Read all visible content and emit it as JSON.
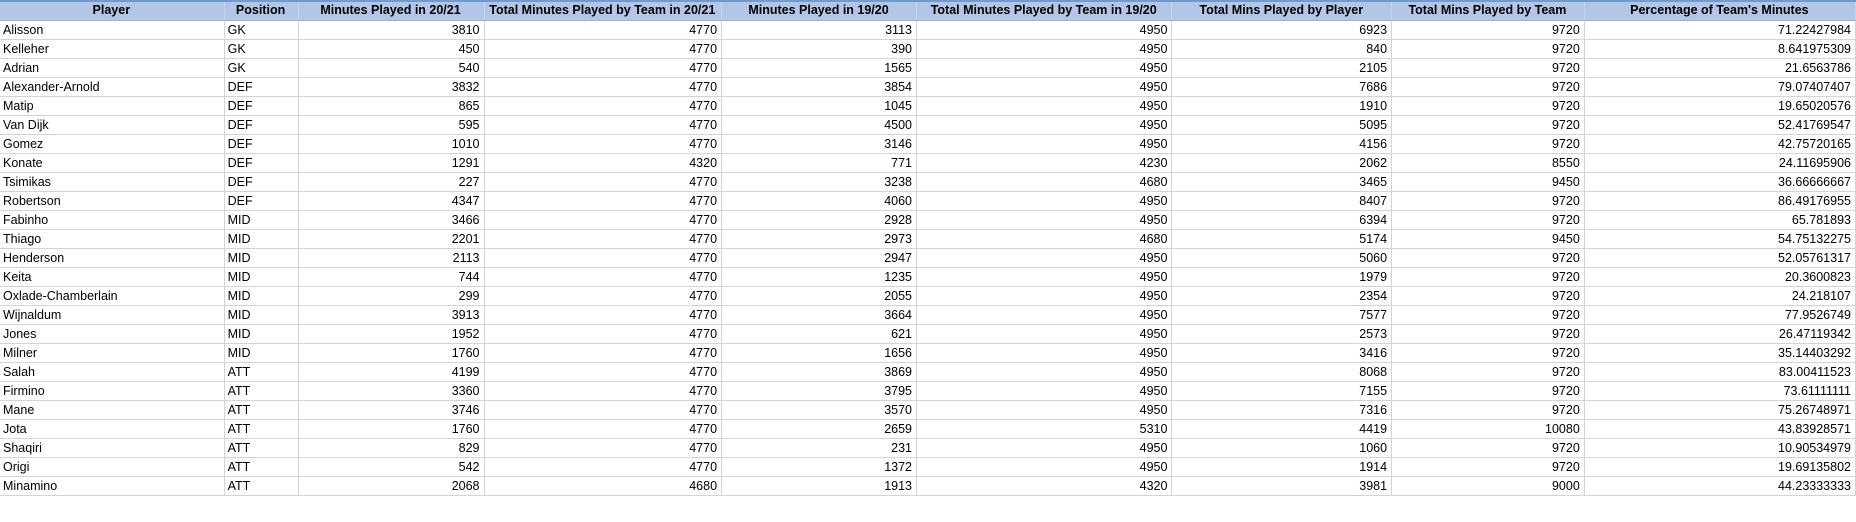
{
  "columns": [
    "Player",
    "Position",
    "Minutes Played in 20/21",
    "Total Minutes Played by Team in 20/21",
    "Minutes Played in 19/20",
    "Total Minutes Played by Team in 19/20",
    "Total Mins Played by Player",
    "Total Mins Played by Team",
    "Percentage of Team's Minutes"
  ],
  "rows": [
    [
      "Alisson",
      "GK",
      "3810",
      "4770",
      "3113",
      "4950",
      "6923",
      "9720",
      "71.22427984"
    ],
    [
      "Kelleher",
      "GK",
      "450",
      "4770",
      "390",
      "4950",
      "840",
      "9720",
      "8.641975309"
    ],
    [
      "Adrian",
      "GK",
      "540",
      "4770",
      "1565",
      "4950",
      "2105",
      "9720",
      "21.6563786"
    ],
    [
      "Alexander-Arnold",
      "DEF",
      "3832",
      "4770",
      "3854",
      "4950",
      "7686",
      "9720",
      "79.07407407"
    ],
    [
      "Matip",
      "DEF",
      "865",
      "4770",
      "1045",
      "4950",
      "1910",
      "9720",
      "19.65020576"
    ],
    [
      "Van Dijk",
      "DEF",
      "595",
      "4770",
      "4500",
      "4950",
      "5095",
      "9720",
      "52.41769547"
    ],
    [
      "Gomez",
      "DEF",
      "1010",
      "4770",
      "3146",
      "4950",
      "4156",
      "9720",
      "42.75720165"
    ],
    [
      "Konate",
      "DEF",
      "1291",
      "4320",
      "771",
      "4230",
      "2062",
      "8550",
      "24.11695906"
    ],
    [
      "Tsimikas",
      "DEF",
      "227",
      "4770",
      "3238",
      "4680",
      "3465",
      "9450",
      "36.66666667"
    ],
    [
      "Robertson",
      "DEF",
      "4347",
      "4770",
      "4060",
      "4950",
      "8407",
      "9720",
      "86.49176955"
    ],
    [
      "Fabinho",
      "MID",
      "3466",
      "4770",
      "2928",
      "4950",
      "6394",
      "9720",
      "65.781893"
    ],
    [
      "Thiago",
      "MID",
      "2201",
      "4770",
      "2973",
      "4680",
      "5174",
      "9450",
      "54.75132275"
    ],
    [
      "Henderson",
      "MID",
      "2113",
      "4770",
      "2947",
      "4950",
      "5060",
      "9720",
      "52.05761317"
    ],
    [
      "Keita",
      "MID",
      "744",
      "4770",
      "1235",
      "4950",
      "1979",
      "9720",
      "20.3600823"
    ],
    [
      "Oxlade-Chamberlain",
      "MID",
      "299",
      "4770",
      "2055",
      "4950",
      "2354",
      "9720",
      "24.218107"
    ],
    [
      "Wijnaldum",
      "MID",
      "3913",
      "4770",
      "3664",
      "4950",
      "7577",
      "9720",
      "77.9526749"
    ],
    [
      "Jones",
      "MID",
      "1952",
      "4770",
      "621",
      "4950",
      "2573",
      "9720",
      "26.47119342"
    ],
    [
      "Milner",
      "MID",
      "1760",
      "4770",
      "1656",
      "4950",
      "3416",
      "9720",
      "35.14403292"
    ],
    [
      "Salah",
      "ATT",
      "4199",
      "4770",
      "3869",
      "4950",
      "8068",
      "9720",
      "83.00411523"
    ],
    [
      "Firmino",
      "ATT",
      "3360",
      "4770",
      "3795",
      "4950",
      "7155",
      "9720",
      "73.61111111"
    ],
    [
      "Mane",
      "ATT",
      "3746",
      "4770",
      "3570",
      "4950",
      "7316",
      "9720",
      "75.26748971"
    ],
    [
      "Jota",
      "ATT",
      "1760",
      "4770",
      "2659",
      "5310",
      "4419",
      "10080",
      "43.83928571"
    ],
    [
      "Shaqiri",
      "ATT",
      "829",
      "4770",
      "231",
      "4950",
      "1060",
      "9720",
      "10.90534979"
    ],
    [
      "Origi",
      "ATT",
      "542",
      "4770",
      "1372",
      "4950",
      "1914",
      "9720",
      "19.69135802"
    ],
    [
      "Minamino",
      "ATT",
      "2068",
      "4680",
      "1913",
      "4320",
      "3981",
      "9000",
      "44.23333333"
    ]
  ]
}
